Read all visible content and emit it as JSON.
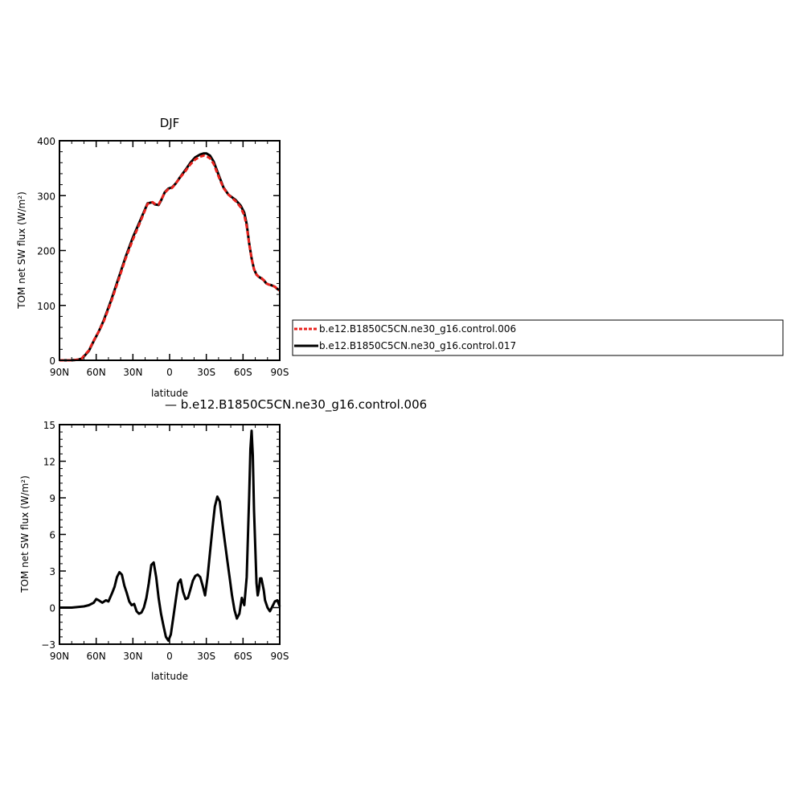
{
  "chart_data": [
    {
      "type": "line",
      "title": "DJF",
      "xlabel": "latitude",
      "ylabel": "TOM net SW flux (W/m²)",
      "xlim": [
        90,
        -90
      ],
      "ylim": [
        0,
        400
      ],
      "xticks": [
        90,
        60,
        30,
        0,
        -30,
        -60,
        -90
      ],
      "xtick_labels": [
        "90N",
        "60N",
        "30N",
        "0",
        "30S",
        "60S",
        "90S"
      ],
      "yticks": [
        0,
        100,
        200,
        300,
        400
      ],
      "ytick_labels": [
        "0",
        "100",
        "200",
        "300",
        "400"
      ],
      "legend": {
        "placement": "right"
      },
      "series": [
        {
          "name": "b.e12.B1850C5CN.ne30_g16.control.006",
          "color": "#e8221d",
          "dash": "dashed",
          "x": [
            90,
            80,
            75,
            72,
            70,
            66,
            62,
            58,
            54,
            48,
            42,
            36,
            30,
            24,
            18,
            14,
            12,
            9,
            7,
            4,
            1,
            -2,
            -5,
            -9,
            -13,
            -17,
            -21,
            -25,
            -28,
            -30,
            -33,
            -36,
            -40,
            -44,
            -48,
            -54,
            -58,
            -61,
            -63,
            -65,
            -67,
            -69,
            -71,
            -73,
            -75,
            -77,
            -79,
            -81,
            -83,
            -86,
            -88,
            -90
          ],
          "values": [
            0,
            0,
            1,
            3,
            8,
            18,
            36,
            52,
            70,
            105,
            145,
            185,
            220,
            252,
            285,
            288,
            285,
            284,
            292,
            305,
            312,
            314,
            322,
            334,
            345,
            357,
            366,
            371,
            373,
            372,
            368,
            358,
            335,
            314,
            302,
            290,
            279,
            264,
            244,
            213,
            185,
            166,
            156,
            152,
            150,
            146,
            140,
            138,
            137,
            134,
            130,
            127
          ]
        },
        {
          "name": "b.e12.B1850C5CN.ne30_g16.control.017",
          "color": "#000000",
          "dash": "solid",
          "x": [
            90,
            80,
            75,
            72,
            70,
            66,
            62,
            58,
            54,
            48,
            42,
            36,
            30,
            24,
            18,
            14,
            12,
            9,
            7,
            4,
            1,
            -2,
            -5,
            -9,
            -13,
            -17,
            -21,
            -25,
            -28,
            -30,
            -33,
            -36,
            -40,
            -44,
            -48,
            -54,
            -58,
            -61,
            -63,
            -65,
            -67,
            -69,
            -71,
            -73,
            -75,
            -77,
            -79,
            -81,
            -83,
            -86,
            -88,
            -90
          ],
          "values": [
            0,
            0,
            1,
            3,
            7,
            17,
            35,
            52,
            72,
            108,
            148,
            188,
            224,
            255,
            286,
            288,
            284,
            283,
            291,
            306,
            313,
            315,
            322,
            335,
            347,
            360,
            370,
            375,
            377,
            377,
            373,
            362,
            338,
            315,
            302,
            292,
            282,
            269,
            248,
            214,
            186,
            166,
            156,
            152,
            149,
            146,
            140,
            138,
            137,
            134,
            130,
            127
          ]
        }
      ]
    },
    {
      "type": "line",
      "title": "— b.e12.B1850C5CN.ne30_g16.control.006",
      "xlabel": "latitude",
      "ylabel": "TOM net SW flux (W/m²)",
      "xlim": [
        90,
        -90
      ],
      "ylim": [
        -3,
        15
      ],
      "xticks": [
        90,
        60,
        30,
        0,
        -30,
        -60,
        -90
      ],
      "xtick_labels": [
        "90N",
        "60N",
        "30N",
        "0",
        "30S",
        "60S",
        "90S"
      ],
      "yticks": [
        -3,
        0,
        3,
        6,
        9,
        12,
        15
      ],
      "ytick_labels": [
        "−3",
        "0",
        "3",
        "6",
        "9",
        "12",
        "15"
      ],
      "series": [
        {
          "name": "b.e12.B1850C5CN.ne30_g16.control.006",
          "color": "#000000",
          "dash": "solid",
          "x": [
            90,
            80,
            75,
            70,
            66,
            62,
            60,
            58,
            55,
            52,
            50,
            47,
            45,
            43,
            41,
            39,
            37,
            35,
            33,
            31,
            29,
            27,
            25,
            23,
            21,
            19,
            17,
            15,
            13,
            11,
            9,
            7,
            5,
            3,
            1,
            -1,
            -3,
            -5,
            -7,
            -9,
            -11,
            -13,
            -15,
            -17,
            -19,
            -21,
            -23,
            -25,
            -27,
            -29,
            -31,
            -33,
            -35,
            -37,
            -39,
            -41,
            -43,
            -45,
            -47,
            -49,
            -51,
            -53,
            -55,
            -57,
            -59,
            -61,
            -63,
            -65,
            -66,
            -67,
            -68,
            -69,
            -71,
            -72,
            -73,
            -74,
            -75,
            -77,
            -78,
            -80,
            -82,
            -84,
            -86,
            -88,
            -90
          ],
          "values": [
            0,
            0,
            0.05,
            0.1,
            0.2,
            0.4,
            0.7,
            0.6,
            0.4,
            0.6,
            0.5,
            1.2,
            1.7,
            2.5,
            2.9,
            2.7,
            1.8,
            1.2,
            0.5,
            0.2,
            0.3,
            -0.3,
            -0.5,
            -0.4,
            0,
            0.8,
            2.0,
            3.5,
            3.7,
            2.5,
            0.8,
            -0.5,
            -1.5,
            -2.4,
            -2.7,
            -2.2,
            -0.8,
            0.6,
            2.0,
            2.3,
            1.3,
            0.7,
            0.8,
            1.5,
            2.2,
            2.6,
            2.7,
            2.5,
            1.8,
            1.0,
            2.5,
            4.5,
            6.5,
            8.3,
            9.1,
            8.7,
            7.0,
            5.5,
            4.0,
            2.5,
            1.0,
            -0.2,
            -0.9,
            -0.5,
            0.8,
            0.2,
            2.5,
            9.0,
            13.0,
            14.5,
            12.5,
            8.0,
            2.0,
            1.0,
            1.5,
            2.4,
            2.4,
            1.4,
            0.6,
            0,
            -0.3,
            0.1,
            0.5,
            0.6,
            0.1
          ]
        }
      ]
    }
  ],
  "legend_entries": [
    "b.e12.B1850C5CN.ne30_g16.control.006",
    "b.e12.B1850C5CN.ne30_g16.control.017"
  ]
}
